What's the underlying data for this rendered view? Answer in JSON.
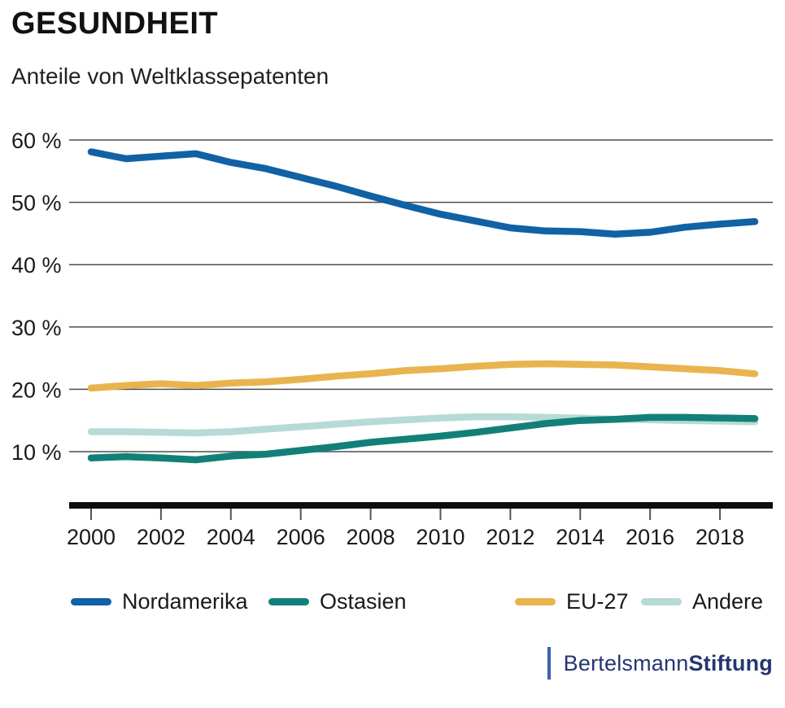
{
  "chart_data": {
    "type": "line",
    "title": "GESUNDHEIT",
    "subtitle": "Anteile von Weltklassepatenten",
    "x": [
      2000,
      2001,
      2002,
      2003,
      2004,
      2005,
      2006,
      2007,
      2008,
      2009,
      2010,
      2011,
      2012,
      2013,
      2014,
      2015,
      2016,
      2017,
      2018,
      2019
    ],
    "series": [
      {
        "name": "Nordamerika",
        "color": "#1161a5",
        "values": [
          58.1,
          57.0,
          57.4,
          57.8,
          56.4,
          55.4,
          54.0,
          52.6,
          51.0,
          49.5,
          48.1,
          47.0,
          45.9,
          45.4,
          45.3,
          44.9,
          45.2,
          46.0,
          46.5,
          46.9
        ]
      },
      {
        "name": "Ostasien",
        "color": "#128079",
        "values": [
          9.0,
          9.2,
          9.0,
          8.7,
          9.3,
          9.6,
          10.2,
          10.8,
          11.5,
          12.0,
          12.5,
          13.1,
          13.8,
          14.5,
          15.0,
          15.2,
          15.5,
          15.5,
          15.4,
          15.3
        ]
      },
      {
        "name": "EU-27",
        "color": "#e9b450",
        "values": [
          20.2,
          20.6,
          20.9,
          20.6,
          21.0,
          21.2,
          21.6,
          22.1,
          22.5,
          23.0,
          23.3,
          23.7,
          24.0,
          24.1,
          24.0,
          23.9,
          23.6,
          23.3,
          23.0,
          22.5
        ]
      },
      {
        "name": "Andere",
        "color": "#b6dbd7",
        "values": [
          13.2,
          13.2,
          13.1,
          13.0,
          13.2,
          13.6,
          14.0,
          14.4,
          14.8,
          15.1,
          15.4,
          15.6,
          15.6,
          15.5,
          15.4,
          15.2,
          15.1,
          15.0,
          14.9,
          14.8
        ]
      }
    ],
    "yticks": [
      60,
      50,
      40,
      30,
      20,
      10
    ],
    "ytick_labels": [
      "60 %",
      "50 %",
      "40 %",
      "30 %",
      "20 %",
      "10 %"
    ],
    "xticks": [
      2000,
      2002,
      2004,
      2006,
      2008,
      2010,
      2012,
      2014,
      2016,
      2018
    ],
    "ylim": [
      0,
      62
    ],
    "grid": "horizontal",
    "legend_position": "bottom"
  },
  "footer": {
    "brand_regular": "Bertelsmann",
    "brand_bold": "Stiftung"
  },
  "colors": {
    "axis": "#0d0d0d",
    "gridline": "#4d4d4d",
    "tick": "#555555",
    "text": "#1a1a1a",
    "logo_text": "#243673",
    "logo_bar": "#3e62ad"
  }
}
